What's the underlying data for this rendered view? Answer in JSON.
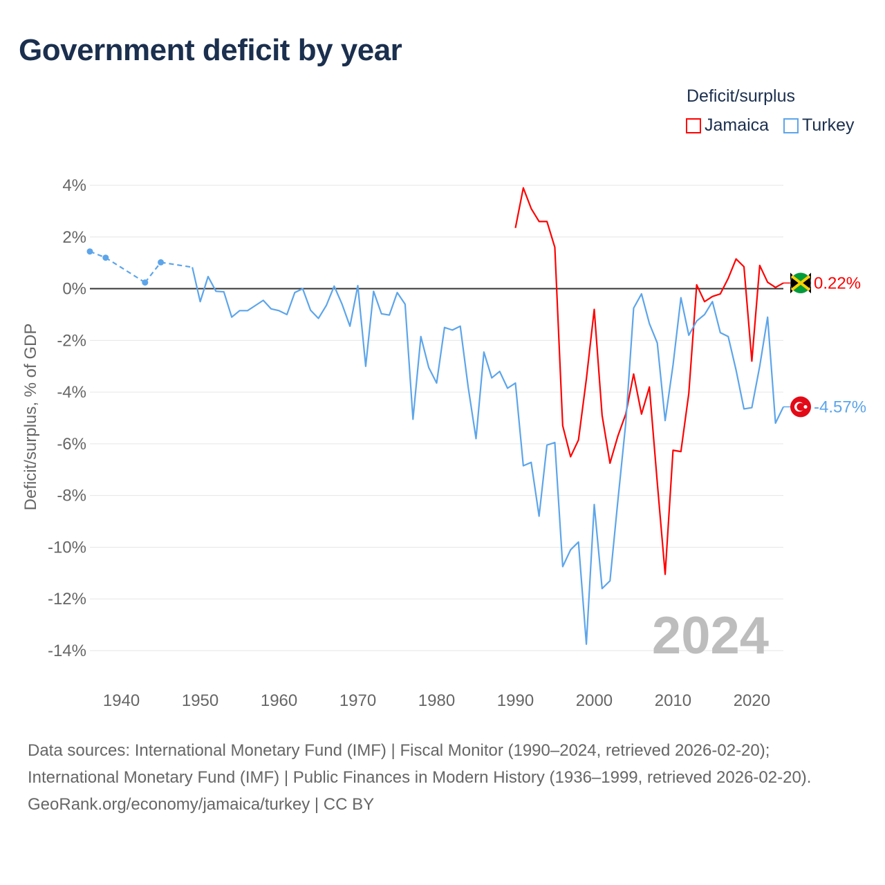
{
  "title": "Government deficit by year",
  "legend": {
    "title": "Deficit/surplus",
    "items": [
      {
        "label": "Jamaica",
        "color": "#ff0000"
      },
      {
        "label": "Turkey",
        "color": "#5ca5ea"
      }
    ]
  },
  "sources": {
    "line1": "Data sources: International Monetary Fund (IMF) | Fiscal Monitor (1990–2024, retrieved 2026-02-20); International Monetary Fund (IMF) | Public Finances in Modern History (1936–1999, retrieved 2026-02-20).",
    "line2": "GeoRank.org/economy/jamaica/turkey | CC BY"
  },
  "chart_data": {
    "type": "line",
    "title": "Government deficit by year",
    "ylabel": "Deficit/surplus, % of GDP",
    "xlabel": "",
    "xlim": [
      1936,
      2024
    ],
    "ylim": [
      -14,
      4
    ],
    "yticks": [
      4,
      2,
      0,
      -2,
      -4,
      -6,
      -8,
      -10,
      -12,
      -14
    ],
    "ytick_labels": [
      "4%",
      "2%",
      "0%",
      "-2%",
      "-4%",
      "-6%",
      "-8%",
      "-10%",
      "-12%",
      "-14%"
    ],
    "xticks": [
      1940,
      1950,
      1960,
      1970,
      1980,
      1990,
      2000,
      2010,
      2020
    ],
    "xtick_labels": [
      "1940",
      "1950",
      "1960",
      "1970",
      "1980",
      "1990",
      "2000",
      "2010",
      "2020"
    ],
    "year_watermark": "2024",
    "grid": true,
    "legend_position": "top-right",
    "series": [
      {
        "name": "Jamaica",
        "color": "#ff0000",
        "end_label": "0.22%",
        "x": [
          1990,
          1991,
          1992,
          1993,
          1994,
          1995,
          1996,
          1997,
          1998,
          1999,
          2000,
          2001,
          2002,
          2003,
          2004,
          2005,
          2006,
          2007,
          2008,
          2009,
          2010,
          2011,
          2012,
          2013,
          2014,
          2015,
          2016,
          2017,
          2018,
          2019,
          2020,
          2021,
          2022,
          2023,
          2024
        ],
        "y": [
          2.35,
          3.9,
          3.1,
          2.6,
          2.6,
          1.6,
          -5.3,
          -6.5,
          -5.85,
          -3.5,
          -0.8,
          -4.9,
          -6.75,
          -5.7,
          -4.85,
          -3.3,
          -4.85,
          -3.8,
          -7.5,
          -11.05,
          -6.25,
          -6.3,
          -4.05,
          0.15,
          -0.5,
          -0.3,
          -0.2,
          0.4,
          1.15,
          0.85,
          -2.8,
          0.9,
          0.25,
          0.05,
          0.22
        ]
      },
      {
        "name": "Turkey",
        "color": "#5ca5ea",
        "end_label": "-4.57%",
        "x": [
          1936,
          1938,
          1943,
          1945,
          1949,
          1950,
          1951,
          1952,
          1953,
          1954,
          1955,
          1956,
          1957,
          1958,
          1959,
          1960,
          1961,
          1962,
          1963,
          1964,
          1965,
          1966,
          1967,
          1968,
          1969,
          1970,
          1971,
          1972,
          1973,
          1974,
          1975,
          1976,
          1977,
          1978,
          1979,
          1980,
          1981,
          1982,
          1983,
          1984,
          1985,
          1986,
          1987,
          1988,
          1989,
          1990,
          1991,
          1992,
          1993,
          1994,
          1995,
          1996,
          1997,
          1998,
          1999,
          2000,
          2001,
          2002,
          2003,
          2004,
          2005,
          2006,
          2007,
          2008,
          2009,
          2010,
          2011,
          2012,
          2013,
          2014,
          2015,
          2016,
          2017,
          2018,
          2019,
          2020,
          2021,
          2022,
          2023,
          2024
        ],
        "y": [
          1.44,
          1.2,
          0.24,
          1.02,
          0.83,
          -0.5,
          0.47,
          -0.1,
          -0.12,
          -1.1,
          -0.85,
          -0.85,
          -0.65,
          -0.45,
          -0.78,
          -0.85,
          -1.0,
          -0.15,
          0.0,
          -0.83,
          -1.15,
          -0.65,
          0.1,
          -0.6,
          -1.45,
          0.12,
          -3.0,
          -0.1,
          -0.97,
          -1.02,
          -0.15,
          -0.6,
          -5.05,
          -1.85,
          -3.05,
          -3.65,
          -1.5,
          -1.6,
          -1.45,
          -3.8,
          -5.8,
          -2.45,
          -3.45,
          -3.2,
          -3.85,
          -3.65,
          -6.85,
          -6.72,
          -8.8,
          -6.05,
          -5.95,
          -10.75,
          -10.1,
          -9.8,
          -13.75,
          -8.35,
          -11.6,
          -11.3,
          -8.2,
          -5.2,
          -0.75,
          -0.2,
          -1.35,
          -2.1,
          -5.1,
          -2.95,
          -0.35,
          -1.8,
          -1.25,
          -1.0,
          -0.5,
          -1.7,
          -1.85,
          -3.15,
          -4.65,
          -4.6,
          -3.0,
          -1.1,
          -5.2,
          -4.57
        ]
      }
    ]
  }
}
